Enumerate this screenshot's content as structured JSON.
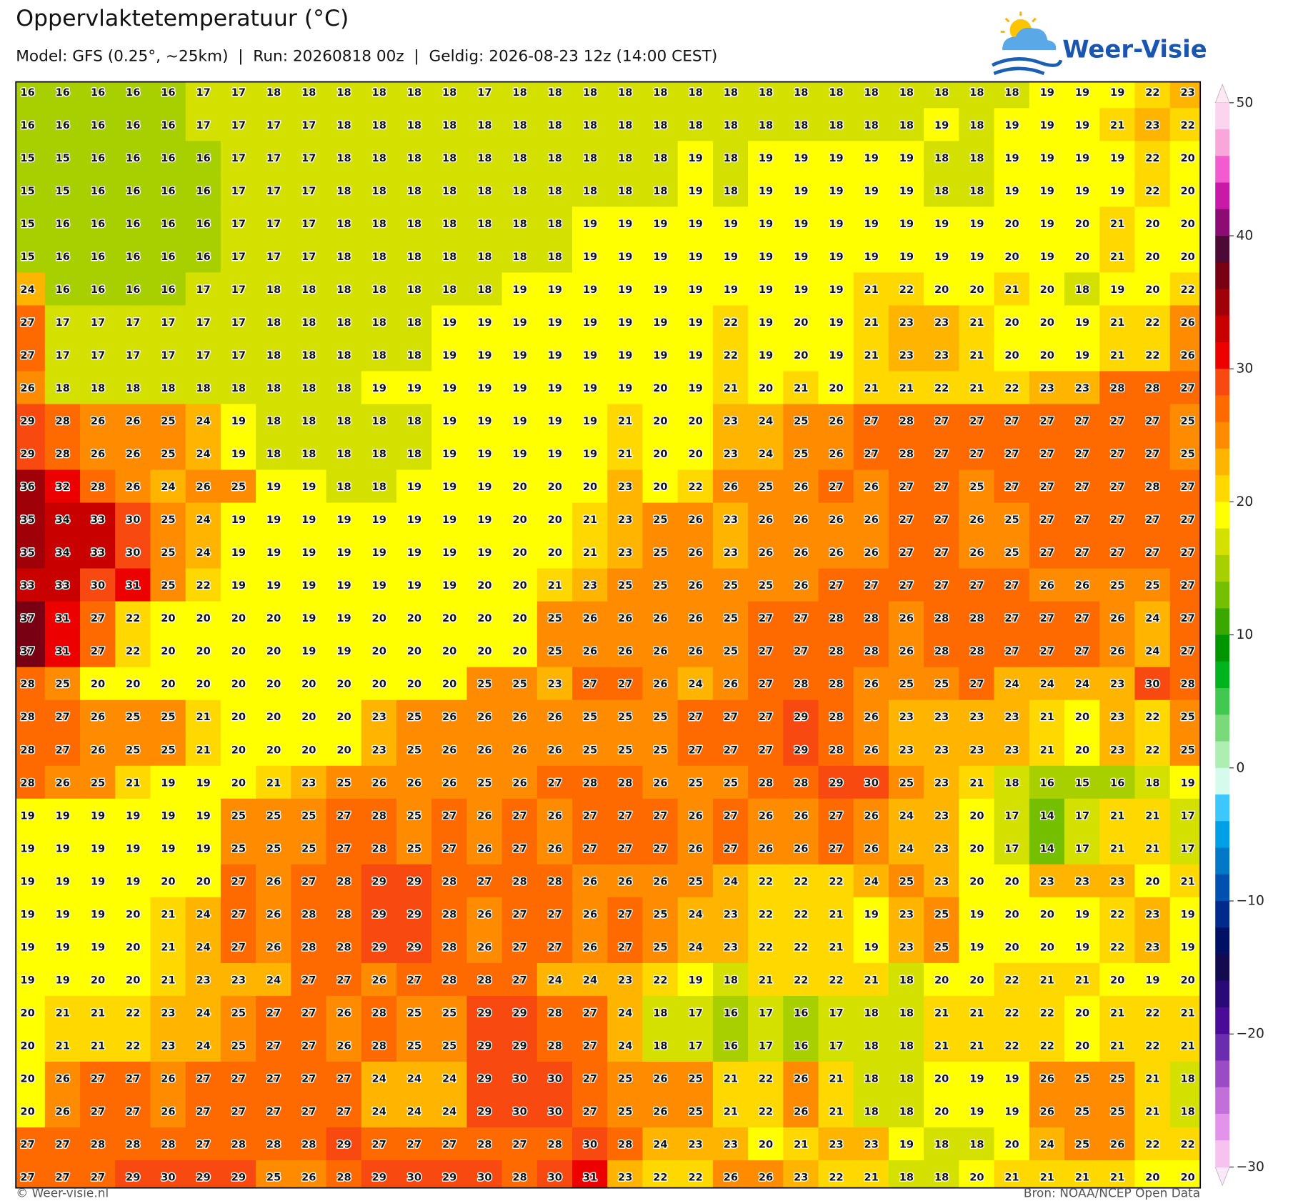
{
  "chart_data": {
    "type": "heatmap",
    "title": "Oppervlaktetemperatuur (°C)",
    "subtitle": "Model: GFS (0.25°, ~25km)  |  Run: 20260818 00z  |  Geldig: 2026-08-23 12z (14:00 CEST)",
    "brand": "Weer-Visie",
    "footer_left": "© Weer-visie.nl",
    "footer_right": "Bron: NOAA/NCEP Open Data",
    "values": [
      [
        16,
        16,
        16,
        16,
        16,
        17,
        17,
        18,
        18,
        18,
        18,
        18,
        18,
        17,
        18,
        18,
        18,
        18,
        18,
        18,
        18,
        18,
        18,
        18,
        18,
        18,
        18,
        18,
        18,
        19,
        19,
        19,
        22,
        23
      ],
      [
        16,
        16,
        16,
        16,
        16,
        17,
        17,
        17,
        17,
        18,
        18,
        18,
        18,
        18,
        18,
        18,
        18,
        18,
        18,
        18,
        18,
        18,
        18,
        18,
        18,
        18,
        19,
        18,
        19,
        19,
        19,
        21,
        23,
        22
      ],
      [
        15,
        15,
        16,
        16,
        16,
        16,
        17,
        17,
        17,
        18,
        18,
        18,
        18,
        18,
        18,
        18,
        18,
        18,
        18,
        19,
        18,
        19,
        19,
        19,
        19,
        19,
        18,
        18,
        19,
        19,
        19,
        19,
        22,
        20
      ],
      [
        15,
        15,
        16,
        16,
        16,
        16,
        17,
        17,
        17,
        18,
        18,
        18,
        18,
        18,
        18,
        18,
        18,
        18,
        18,
        19,
        18,
        19,
        19,
        19,
        19,
        19,
        18,
        18,
        19,
        19,
        19,
        19,
        22,
        20
      ],
      [
        15,
        16,
        16,
        16,
        16,
        16,
        17,
        17,
        17,
        18,
        18,
        18,
        18,
        18,
        18,
        18,
        19,
        19,
        19,
        19,
        19,
        19,
        19,
        19,
        19,
        19,
        19,
        19,
        20,
        19,
        20,
        21,
        20,
        20
      ],
      [
        15,
        16,
        16,
        16,
        16,
        16,
        17,
        17,
        17,
        18,
        18,
        18,
        18,
        18,
        18,
        18,
        19,
        19,
        19,
        19,
        19,
        19,
        19,
        19,
        19,
        19,
        19,
        19,
        20,
        19,
        20,
        21,
        20,
        20
      ],
      [
        24,
        16,
        16,
        16,
        16,
        17,
        17,
        18,
        18,
        18,
        18,
        18,
        18,
        18,
        19,
        19,
        19,
        19,
        19,
        19,
        19,
        19,
        19,
        19,
        21,
        22,
        20,
        20,
        21,
        20,
        18,
        19,
        20,
        22
      ],
      [
        27,
        17,
        17,
        17,
        17,
        17,
        17,
        18,
        18,
        18,
        18,
        18,
        19,
        19,
        19,
        19,
        19,
        19,
        19,
        19,
        22,
        19,
        20,
        19,
        21,
        23,
        23,
        21,
        20,
        20,
        19,
        21,
        22,
        26
      ],
      [
        27,
        17,
        17,
        17,
        17,
        17,
        17,
        18,
        18,
        18,
        18,
        18,
        19,
        19,
        19,
        19,
        19,
        19,
        19,
        19,
        22,
        19,
        20,
        19,
        21,
        23,
        23,
        21,
        20,
        20,
        19,
        21,
        22,
        26
      ],
      [
        26,
        18,
        18,
        18,
        18,
        18,
        18,
        18,
        18,
        18,
        19,
        19,
        19,
        19,
        19,
        19,
        19,
        19,
        20,
        19,
        21,
        20,
        21,
        20,
        21,
        21,
        22,
        21,
        22,
        23,
        23,
        28,
        28,
        27
      ],
      [
        29,
        28,
        26,
        26,
        25,
        24,
        19,
        18,
        18,
        18,
        18,
        18,
        19,
        19,
        19,
        19,
        19,
        21,
        20,
        20,
        23,
        24,
        25,
        26,
        27,
        28,
        27,
        27,
        27,
        27,
        27,
        27,
        27,
        25
      ],
      [
        29,
        28,
        26,
        26,
        25,
        24,
        19,
        18,
        18,
        18,
        18,
        18,
        19,
        19,
        19,
        19,
        19,
        21,
        20,
        20,
        23,
        24,
        25,
        26,
        27,
        28,
        27,
        27,
        27,
        27,
        27,
        27,
        27,
        25
      ],
      [
        36,
        32,
        28,
        26,
        24,
        26,
        25,
        19,
        19,
        18,
        18,
        19,
        19,
        19,
        20,
        20,
        20,
        23,
        20,
        22,
        26,
        25,
        26,
        27,
        26,
        27,
        27,
        25,
        27,
        27,
        27,
        27,
        28,
        27
      ],
      [
        35,
        34,
        33,
        30,
        25,
        24,
        19,
        19,
        19,
        19,
        19,
        19,
        19,
        19,
        20,
        20,
        21,
        23,
        25,
        26,
        23,
        26,
        26,
        26,
        26,
        27,
        27,
        26,
        25,
        27,
        27,
        27,
        27,
        27
      ],
      [
        35,
        34,
        33,
        30,
        25,
        24,
        19,
        19,
        19,
        19,
        19,
        19,
        19,
        19,
        20,
        20,
        21,
        23,
        25,
        26,
        23,
        26,
        26,
        26,
        26,
        27,
        27,
        26,
        25,
        27,
        27,
        27,
        27,
        27
      ],
      [
        33,
        33,
        30,
        31,
        25,
        22,
        19,
        19,
        19,
        19,
        19,
        19,
        19,
        20,
        20,
        21,
        23,
        25,
        25,
        26,
        25,
        25,
        26,
        27,
        27,
        27,
        27,
        27,
        27,
        26,
        26,
        25,
        25,
        27
      ],
      [
        37,
        31,
        27,
        22,
        20,
        20,
        20,
        20,
        19,
        19,
        20,
        20,
        20,
        20,
        20,
        25,
        26,
        26,
        26,
        26,
        25,
        27,
        27,
        28,
        28,
        26,
        28,
        28,
        27,
        27,
        27,
        26,
        24,
        27
      ],
      [
        37,
        31,
        27,
        22,
        20,
        20,
        20,
        20,
        19,
        19,
        20,
        20,
        20,
        20,
        20,
        25,
        26,
        26,
        26,
        26,
        25,
        27,
        27,
        28,
        28,
        26,
        28,
        28,
        27,
        27,
        27,
        26,
        24,
        27
      ],
      [
        28,
        25,
        20,
        20,
        20,
        20,
        20,
        20,
        20,
        20,
        20,
        20,
        20,
        25,
        25,
        23,
        27,
        27,
        26,
        24,
        26,
        27,
        28,
        28,
        26,
        25,
        25,
        27,
        24,
        24,
        24,
        23,
        30,
        28
      ],
      [
        28,
        27,
        26,
        25,
        25,
        21,
        20,
        20,
        20,
        20,
        23,
        25,
        26,
        26,
        26,
        26,
        25,
        25,
        25,
        27,
        27,
        27,
        29,
        28,
        26,
        23,
        23,
        23,
        23,
        21,
        20,
        23,
        22,
        25
      ],
      [
        28,
        27,
        26,
        25,
        25,
        21,
        20,
        20,
        20,
        20,
        23,
        25,
        26,
        26,
        26,
        26,
        25,
        25,
        25,
        27,
        27,
        27,
        29,
        28,
        26,
        23,
        23,
        23,
        23,
        21,
        20,
        23,
        22,
        25
      ],
      [
        28,
        26,
        25,
        21,
        19,
        19,
        20,
        21,
        23,
        25,
        26,
        26,
        26,
        25,
        26,
        27,
        28,
        28,
        26,
        25,
        25,
        28,
        28,
        29,
        30,
        25,
        23,
        21,
        18,
        16,
        15,
        16,
        18,
        19
      ],
      [
        19,
        19,
        19,
        19,
        19,
        19,
        25,
        25,
        25,
        27,
        28,
        25,
        27,
        26,
        27,
        26,
        27,
        27,
        27,
        26,
        27,
        26,
        26,
        27,
        26,
        24,
        23,
        20,
        17,
        14,
        17,
        21,
        21,
        17
      ],
      [
        19,
        19,
        19,
        19,
        19,
        19,
        25,
        25,
        25,
        27,
        28,
        25,
        27,
        26,
        27,
        26,
        27,
        27,
        27,
        26,
        27,
        26,
        26,
        27,
        26,
        24,
        23,
        20,
        17,
        14,
        17,
        21,
        21,
        17
      ],
      [
        19,
        19,
        19,
        19,
        20,
        20,
        27,
        26,
        27,
        28,
        29,
        29,
        28,
        27,
        28,
        28,
        26,
        26,
        26,
        25,
        24,
        22,
        22,
        22,
        24,
        25,
        23,
        20,
        20,
        23,
        23,
        23,
        20,
        21
      ],
      [
        19,
        19,
        19,
        20,
        21,
        24,
        27,
        26,
        28,
        28,
        29,
        29,
        28,
        26,
        27,
        27,
        26,
        27,
        25,
        24,
        23,
        22,
        22,
        21,
        19,
        23,
        25,
        19,
        20,
        20,
        19,
        22,
        23,
        19
      ],
      [
        19,
        19,
        19,
        20,
        21,
        24,
        27,
        26,
        28,
        28,
        29,
        29,
        28,
        26,
        27,
        27,
        26,
        27,
        25,
        24,
        23,
        22,
        22,
        21,
        19,
        23,
        25,
        19,
        20,
        20,
        19,
        22,
        23,
        19
      ],
      [
        19,
        19,
        20,
        20,
        21,
        23,
        23,
        24,
        27,
        27,
        26,
        27,
        28,
        28,
        27,
        24,
        24,
        23,
        22,
        19,
        18,
        21,
        22,
        22,
        21,
        18,
        20,
        20,
        22,
        21,
        21,
        20,
        19,
        20
      ],
      [
        20,
        21,
        21,
        22,
        23,
        24,
        25,
        27,
        27,
        26,
        28,
        25,
        25,
        29,
        29,
        28,
        27,
        24,
        18,
        17,
        16,
        17,
        16,
        17,
        18,
        18,
        21,
        21,
        22,
        22,
        20,
        21,
        22,
        21
      ],
      [
        20,
        21,
        21,
        22,
        23,
        24,
        25,
        27,
        27,
        26,
        28,
        25,
        25,
        29,
        29,
        28,
        27,
        24,
        18,
        17,
        16,
        17,
        16,
        17,
        18,
        18,
        21,
        21,
        22,
        22,
        20,
        21,
        22,
        21
      ],
      [
        20,
        26,
        27,
        27,
        26,
        27,
        27,
        27,
        27,
        27,
        24,
        24,
        24,
        29,
        30,
        30,
        27,
        25,
        26,
        25,
        21,
        22,
        26,
        21,
        18,
        18,
        20,
        19,
        19,
        26,
        25,
        25,
        21,
        18
      ],
      [
        20,
        26,
        27,
        27,
        26,
        27,
        27,
        27,
        27,
        27,
        24,
        24,
        24,
        29,
        30,
        30,
        27,
        25,
        26,
        25,
        21,
        22,
        26,
        21,
        18,
        18,
        20,
        19,
        19,
        26,
        25,
        25,
        21,
        18
      ],
      [
        27,
        27,
        28,
        28,
        28,
        27,
        28,
        28,
        28,
        29,
        27,
        27,
        27,
        28,
        27,
        28,
        30,
        28,
        24,
        23,
        23,
        20,
        21,
        23,
        23,
        19,
        18,
        18,
        20,
        24,
        25,
        26,
        22,
        22
      ],
      [
        27,
        27,
        27,
        29,
        30,
        29,
        29,
        25,
        26,
        28,
        29,
        30,
        29,
        30,
        28,
        30,
        31,
        23,
        22,
        22,
        26,
        26,
        23,
        22,
        21,
        18,
        18,
        20,
        21,
        21,
        21,
        21,
        20,
        20
      ]
    ],
    "colorbar_lim": [
      -30,
      50
    ],
    "colorbar_ticks": [
      50,
      40,
      30,
      20,
      10,
      0,
      {
        "value": -10,
        "label": "−10"
      },
      {
        "value": -20,
        "label": "−20"
      },
      {
        "value": -30,
        "label": "−30"
      }
    ],
    "colorbar_colors": [
      "#fcd4ee",
      "#f9a6da",
      "#f25ccf",
      "#c81aa6",
      "#8c0c74",
      "#4c0a36",
      "#780012",
      "#a00008",
      "#c80000",
      "#ec0000",
      "#f84a10",
      "#ff6a00",
      "#ff8c00",
      "#ffb400",
      "#ffd800",
      "#ffff00",
      "#d4e000",
      "#a8d000",
      "#74c000",
      "#3aa800",
      "#009600",
      "#00b41e",
      "#40c850",
      "#7ada7a",
      "#aeeeb2",
      "#d4fbec",
      "#3cc8ff",
      "#00a0e6",
      "#0078c8",
      "#0050b0",
      "#002a8c",
      "#001064",
      "#140a50",
      "#2a0a78",
      "#4a0c98",
      "#6c2cb0",
      "#9a4cc4",
      "#c070d8",
      "#e294ea",
      "#f8c2f0"
    ],
    "colorbar_over_color": "#fde8f4",
    "colorbar_under_color": "#fce8fc"
  }
}
